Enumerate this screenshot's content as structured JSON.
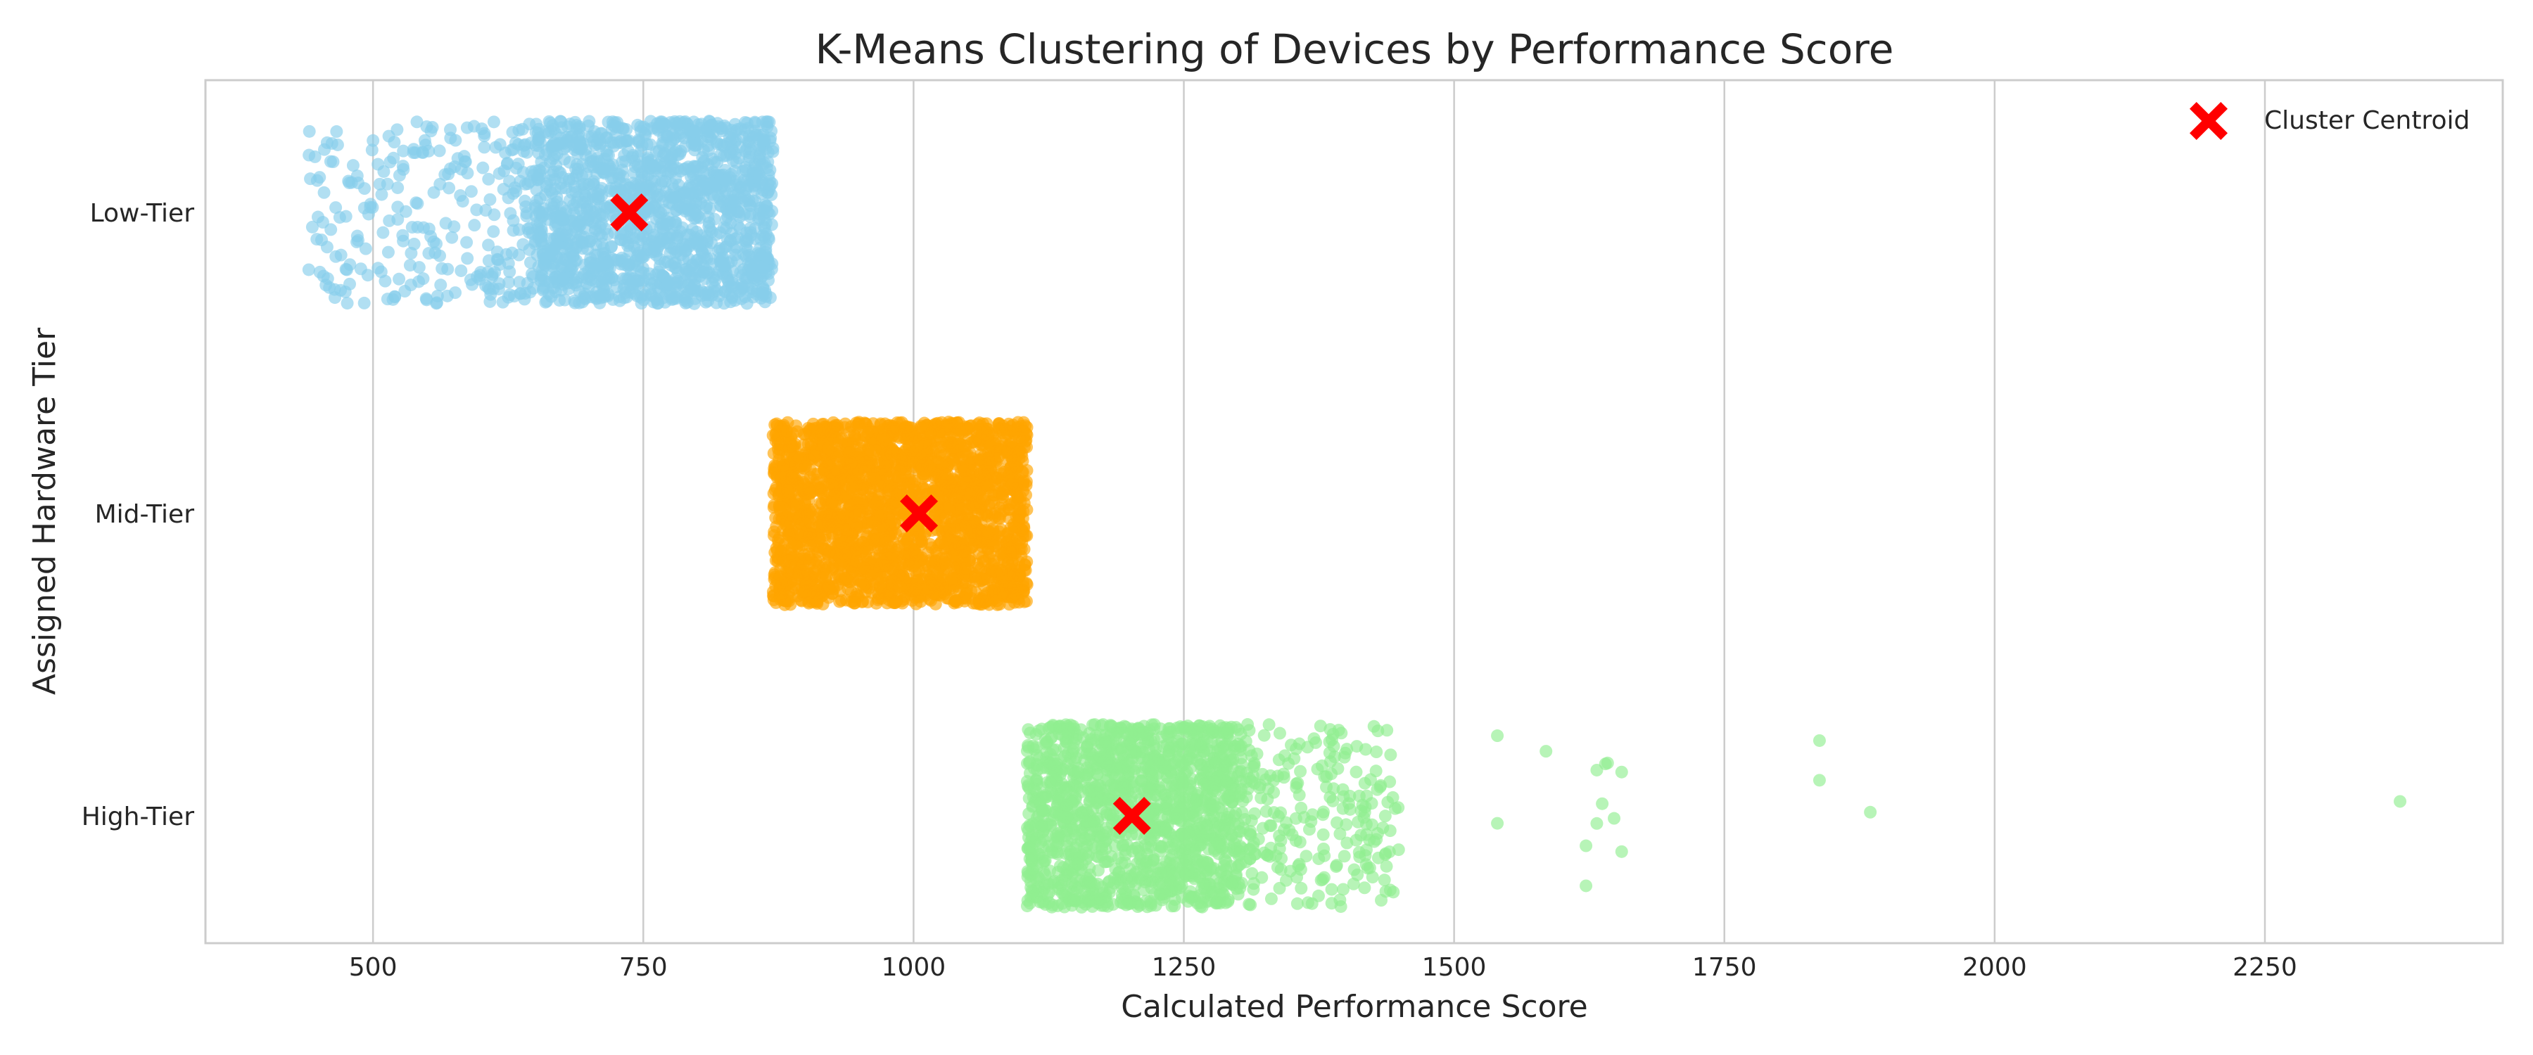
{
  "chart_data": {
    "type": "scatter",
    "title": "K-Means Clustering of Devices by Performance Score",
    "xlabel": "Calculated Performance Score",
    "ylabel": "Assigned Hardware Tier",
    "xlim": [
      345,
      2470
    ],
    "x_ticks": [
      500,
      750,
      1000,
      1250,
      1500,
      1750,
      2000,
      2250
    ],
    "categories": [
      "Low-Tier",
      "Mid-Tier",
      "High-Tier"
    ],
    "grid": "vertical",
    "legend": {
      "placement": "top-right",
      "entries": [
        "Cluster Centroid"
      ]
    },
    "series": [
      {
        "category": "Low-Tier",
        "color": "#87CEEB",
        "dense_range": [
          650,
          870
        ],
        "sparse_range": [
          440,
          650
        ],
        "outliers": [
          442,
          455,
          462,
          470,
          478,
          485,
          492,
          500,
          508,
          515,
          520,
          528,
          535
        ]
      },
      {
        "category": "Mid-Tier",
        "color": "#FFA500",
        "dense_range": [
          870,
          1105
        ]
      },
      {
        "category": "High-Tier",
        "color": "#90EE90",
        "dense_range": [
          1105,
          1300
        ],
        "sparse_range": [
          1300,
          1450
        ],
        "outliers": [
          1540,
          1540,
          1585,
          1622,
          1622,
          1632,
          1632,
          1637,
          1640,
          1642,
          1648,
          1655,
          1655,
          1838,
          1838,
          1885,
          2375
        ]
      }
    ],
    "centroids": [
      {
        "category": "Low-Tier",
        "x": 737,
        "color": "#FF0000"
      },
      {
        "category": "Mid-Tier",
        "x": 1005,
        "color": "#FF0000"
      },
      {
        "category": "High-Tier",
        "x": 1202,
        "color": "#FF0000"
      }
    ]
  }
}
